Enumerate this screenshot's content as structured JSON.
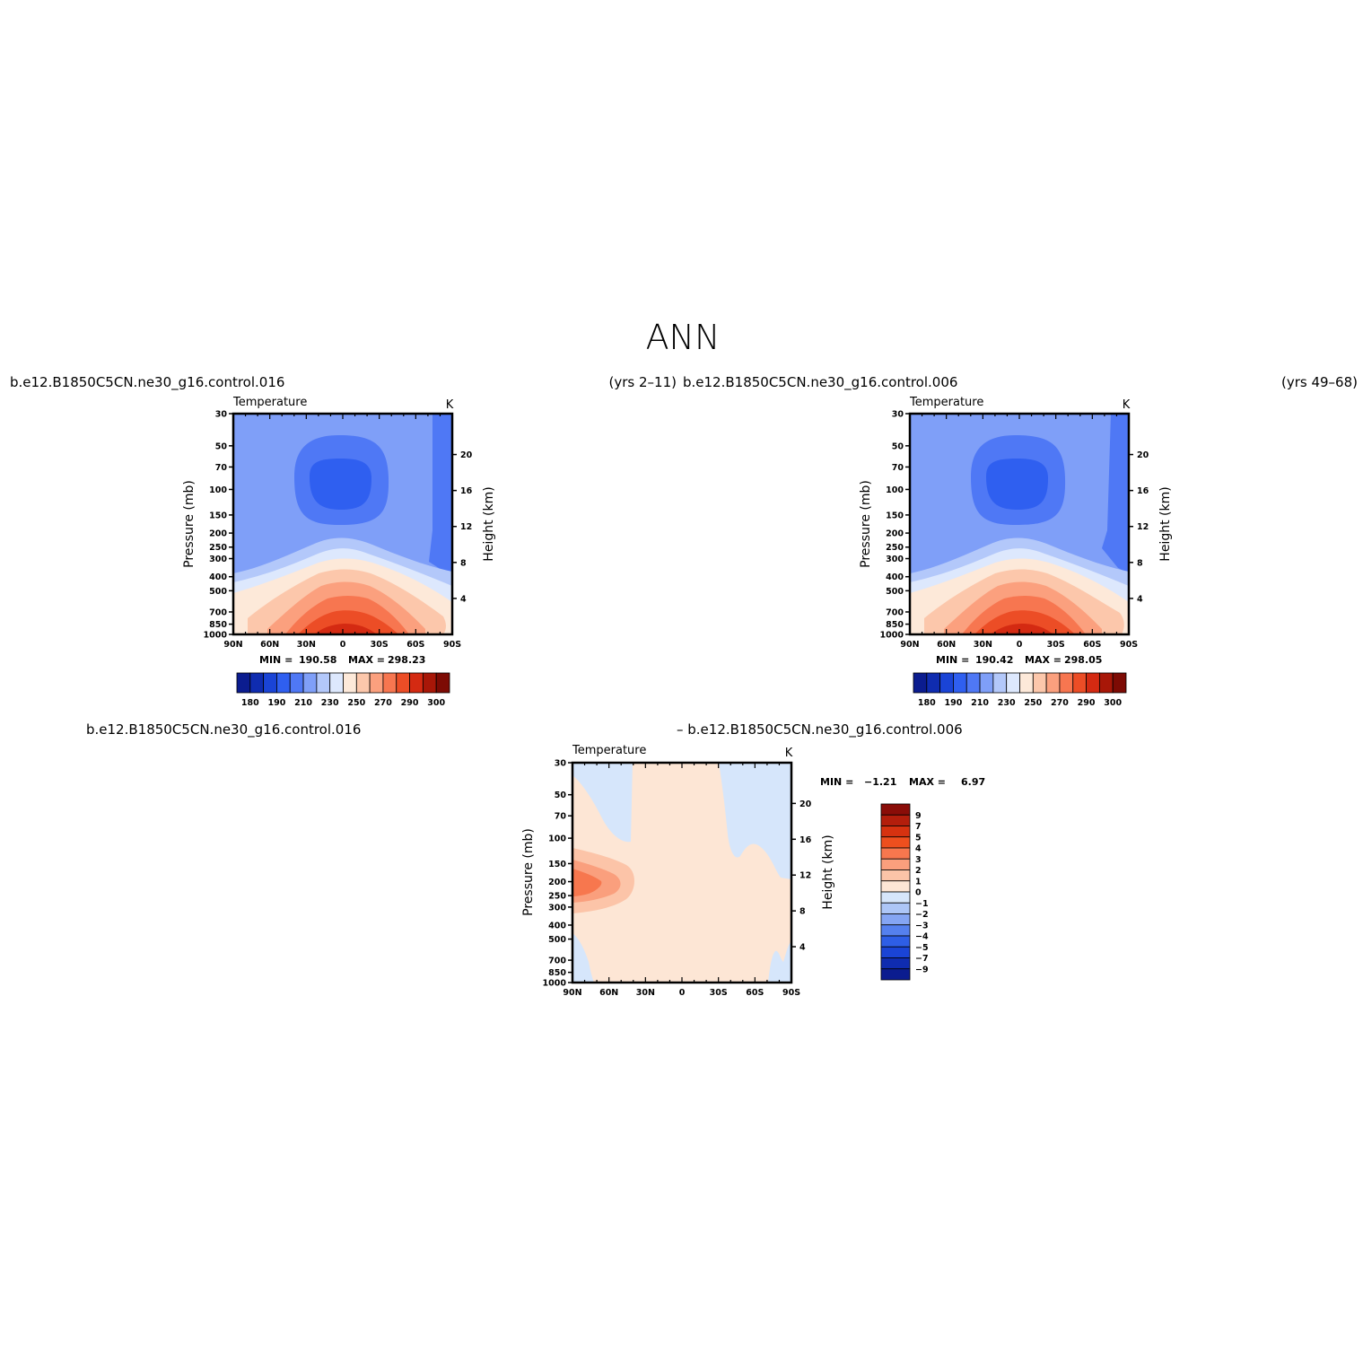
{
  "figure": {
    "main_title": "ANN",
    "top_left_case": "b.e12.B1850C5CN.ne30_g16.control.016",
    "top_left_years": "(yrs 2–11)",
    "top_right_case": "b.e12.B1850C5CN.ne30_g16.control.006",
    "top_right_years": "(yrs 49–68)",
    "diff_left": "b.e12.B1850C5CN.ne30_g16.control.016",
    "diff_right": "–  b.e12.B1850C5CN.ne30_g16.control.006"
  },
  "chart_data": [
    {
      "type": "heatmap",
      "id": "case1",
      "title": "Temperature",
      "units": "K",
      "xlabel": "",
      "ylabel": "Pressure (mb)",
      "y2label": "Height (km)",
      "x_ticks": [
        "90N",
        "60N",
        "30N",
        "0",
        "30S",
        "60S",
        "90S"
      ],
      "y_ticks": [
        30,
        50,
        70,
        100,
        150,
        200,
        250,
        300,
        400,
        500,
        700,
        850,
        1000
      ],
      "y2_ticks": [
        20,
        16,
        12,
        8,
        4
      ],
      "y_scale": "log",
      "ylim": [
        1000,
        30
      ],
      "xlim": [
        90,
        -90
      ],
      "min_label": "MIN =",
      "min_value": "190.58",
      "max_label": "MAX =",
      "max_value": "298.23",
      "colorbar_labels": [
        "180",
        "190",
        "210",
        "230",
        "250",
        "270",
        "290",
        "300"
      ]
    },
    {
      "type": "heatmap",
      "id": "case2",
      "title": "Temperature",
      "units": "K",
      "xlabel": "",
      "ylabel": "Pressure (mb)",
      "y2label": "Height (km)",
      "x_ticks": [
        "90N",
        "60N",
        "30N",
        "0",
        "30S",
        "60S",
        "90S"
      ],
      "y_ticks": [
        30,
        50,
        70,
        100,
        150,
        200,
        250,
        300,
        400,
        500,
        700,
        850,
        1000
      ],
      "y2_ticks": [
        20,
        16,
        12,
        8,
        4
      ],
      "y_scale": "log",
      "ylim": [
        1000,
        30
      ],
      "xlim": [
        90,
        -90
      ],
      "min_label": "MIN =",
      "min_value": "190.42",
      "max_label": "MAX =",
      "max_value": "298.05",
      "colorbar_labels": [
        "180",
        "190",
        "210",
        "230",
        "250",
        "270",
        "290",
        "300"
      ]
    },
    {
      "type": "heatmap",
      "id": "difference",
      "title": "Temperature",
      "units": "K",
      "xlabel": "",
      "ylabel": "Pressure (mb)",
      "y2label": "Height (km)",
      "x_ticks": [
        "90N",
        "60N",
        "30N",
        "0",
        "30S",
        "60S",
        "90S"
      ],
      "y_ticks": [
        30,
        50,
        70,
        100,
        150,
        200,
        250,
        300,
        400,
        500,
        700,
        850,
        1000
      ],
      "y2_ticks": [
        20,
        16,
        12,
        8,
        4
      ],
      "y_scale": "log",
      "ylim": [
        1000,
        30
      ],
      "xlim": [
        90,
        -90
      ],
      "min_label": "MIN =",
      "min_value": "−1.21",
      "max_label": "MAX =",
      "max_value": "6.97",
      "colorbar_labels": [
        "9",
        "7",
        "5",
        "4",
        "3",
        "2",
        "1",
        "0",
        "−1",
        "−2",
        "−3",
        "−4",
        "−5",
        "−7",
        "−9"
      ]
    }
  ],
  "colors": {
    "abs_colorbar": [
      "#0b1c8f",
      "#0f2cb0",
      "#1a44d6",
      "#2f5ff0",
      "#4f78f5",
      "#7f9ff8",
      "#b3c8fa",
      "#dde8fd",
      "#fde9d9",
      "#fcc7ab",
      "#fba07e",
      "#f77650",
      "#ec4d26",
      "#d42a12",
      "#a81708",
      "#7d0b04"
    ],
    "diff_colorbar": [
      "#8a0d08",
      "#b31e0c",
      "#d63210",
      "#ee4f1e",
      "#f7774e",
      "#fa9f7d",
      "#fcc4a8",
      "#fde6d5",
      "#d6e6fb",
      "#adc6f7",
      "#85a5f3",
      "#5580ee",
      "#2e5ee6",
      "#1a44d6",
      "#0f2cb0",
      "#0b1c8f"
    ]
  }
}
